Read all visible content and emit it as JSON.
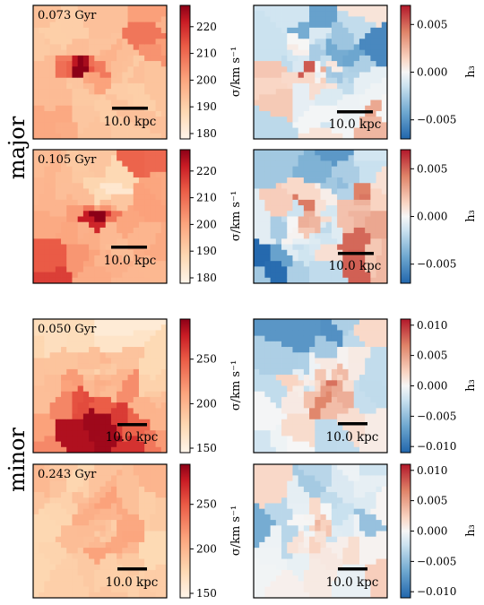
{
  "groups": [
    {
      "label": "major"
    },
    {
      "label": "minor"
    }
  ],
  "panels": [
    {
      "time": "0.073 Gyr",
      "scale": "10.0 kpc",
      "sigma_cbar": {
        "label": "σ/km s⁻¹",
        "ticks": [
          "180",
          "190",
          "200",
          "210",
          "220"
        ],
        "range": [
          178,
          228
        ]
      },
      "h3_cbar": {
        "label": "h₃",
        "ticks": [
          "0.005",
          "0.000",
          "−0.005"
        ],
        "range": [
          -0.007,
          0.007
        ]
      },
      "sigma_map": {
        "base": 0.28,
        "center": [
          0.36,
          0.47
        ],
        "core": 0.9,
        "bar_amp": 0.5,
        "bar_angle": 0.0,
        "bar_len": 0.28,
        "bar_w": 0.05,
        "ring_r": 0.0,
        "ring_amp": 0.0,
        "gradient": [
          0.0,
          0.0
        ],
        "blobs": [
          [
            0.75,
            0.05,
            0.12,
            0.6
          ],
          [
            0.9,
            0.25,
            0.1,
            0.25
          ],
          [
            0.15,
            0.9,
            0.15,
            0.15
          ]
        ]
      },
      "h3_map": {
        "noise": 0.32,
        "center": [
          0.5,
          0.52
        ],
        "blobs": [
          [
            0.0,
            0.55,
            0.12,
            0.85
          ],
          [
            0.05,
            0.3,
            0.12,
            -0.4
          ],
          [
            0.55,
            0.2,
            0.18,
            -0.45
          ],
          [
            0.85,
            0.3,
            0.12,
            -0.5
          ],
          [
            0.45,
            0.45,
            0.04,
            0.9
          ],
          [
            0.35,
            0.55,
            0.08,
            0.35
          ],
          [
            0.9,
            0.9,
            0.15,
            0.25
          ]
        ]
      }
    },
    {
      "time": "0.105 Gyr",
      "scale": "10.0 kpc",
      "sigma_cbar": {
        "label": "σ/km s⁻¹",
        "ticks": [
          "180",
          "190",
          "200",
          "210",
          "220"
        ],
        "range": [
          178,
          228
        ]
      },
      "h3_cbar": {
        "label": "h₃",
        "ticks": [
          "0.005",
          "0.000",
          "−0.005"
        ],
        "range": [
          -0.007,
          0.007
        ]
      },
      "sigma_map": {
        "base": 0.35,
        "center": [
          0.48,
          0.5
        ],
        "core": 0.95,
        "bar_amp": 0.45,
        "bar_angle": 0.05,
        "bar_len": 0.25,
        "bar_w": 0.04,
        "ring_r": 0.0,
        "ring_amp": 0.0,
        "gradient": [
          0.0,
          0.0
        ],
        "blobs": [
          [
            0.05,
            0.92,
            0.2,
            0.45
          ],
          [
            0.85,
            0.1,
            0.15,
            0.35
          ],
          [
            0.95,
            0.6,
            0.1,
            0.2
          ],
          [
            0.55,
            0.25,
            0.1,
            -0.35
          ]
        ]
      },
      "h3_map": {
        "noise": 0.3,
        "center": [
          0.52,
          0.55
        ],
        "blobs": [
          [
            0.62,
            0.05,
            0.15,
            -0.9
          ],
          [
            0.1,
            0.85,
            0.15,
            -0.85
          ],
          [
            0.4,
            0.45,
            0.06,
            0.95
          ],
          [
            0.75,
            0.72,
            0.07,
            0.95
          ],
          [
            0.85,
            0.4,
            0.1,
            0.6
          ],
          [
            0.2,
            0.2,
            0.15,
            -0.3
          ],
          [
            0.92,
            0.92,
            0.1,
            0.4
          ]
        ]
      }
    },
    {
      "time": "0.050 Gyr",
      "scale": "10.0 kpc",
      "sigma_cbar": {
        "label": "σ/km s⁻¹",
        "ticks": [
          "250",
          "200",
          "150"
        ],
        "range": [
          145,
          295
        ]
      },
      "h3_cbar": {
        "label": "h₃",
        "ticks": [
          "0.010",
          "0.005",
          "0.000",
          "−0.005",
          "−0.010"
        ],
        "range": [
          -0.011,
          0.011
        ]
      },
      "sigma_map": {
        "base": 0.12,
        "center": [
          0.5,
          0.48
        ],
        "core": 0.15,
        "bar_amp": 0.0,
        "bar_angle": 0.0,
        "bar_len": 0.0,
        "bar_w": 0.05,
        "ring_r": 0.2,
        "ring_amp": 0.25,
        "gradient": [
          0.0,
          0.32
        ],
        "blobs": [
          [
            0.55,
            0.98,
            0.2,
            0.7
          ],
          [
            0.35,
            0.9,
            0.15,
            0.3
          ],
          [
            0.75,
            0.2,
            0.2,
            -0.15
          ]
        ]
      },
      "h3_map": {
        "noise": 0.3,
        "center": [
          0.5,
          0.5
        ],
        "blobs": [
          [
            0.38,
            0.05,
            0.12,
            -0.95
          ],
          [
            0.6,
            0.08,
            0.1,
            -0.6
          ],
          [
            0.95,
            0.55,
            0.1,
            -0.8
          ],
          [
            0.1,
            0.3,
            0.15,
            -0.35
          ],
          [
            0.55,
            0.6,
            0.08,
            0.6
          ],
          [
            0.65,
            0.5,
            0.06,
            0.45
          ],
          [
            0.15,
            0.9,
            0.15,
            0.1
          ]
        ]
      }
    },
    {
      "time": "0.243 Gyr",
      "scale": "10.0 kpc",
      "sigma_cbar": {
        "label": "σ/km s⁻¹",
        "ticks": [
          "250",
          "200",
          "150"
        ],
        "range": [
          145,
          295
        ]
      },
      "h3_cbar": {
        "label": "h₃",
        "ticks": [
          "0.010",
          "0.005",
          "0.000",
          "−0.005",
          "−0.010"
        ],
        "range": [
          -0.011,
          0.011
        ]
      },
      "sigma_map": {
        "base": 0.2,
        "center": [
          0.52,
          0.48
        ],
        "core": 0.15,
        "bar_amp": 0.0,
        "bar_angle": 0.0,
        "bar_len": 0.0,
        "bar_w": 0.05,
        "ring_r": 0.18,
        "ring_amp": 0.22,
        "gradient": [
          0.0,
          0.05
        ],
        "blobs": [
          [
            0.95,
            0.2,
            0.12,
            0.2
          ],
          [
            0.08,
            0.15,
            0.12,
            0.15
          ]
        ]
      },
      "h3_map": {
        "noise": 0.25,
        "center": [
          0.5,
          0.45
        ],
        "blobs": [
          [
            0.6,
            0.05,
            0.15,
            -0.3
          ],
          [
            0.05,
            0.45,
            0.15,
            -0.35
          ],
          [
            0.95,
            0.4,
            0.15,
            -0.3
          ],
          [
            0.7,
            0.75,
            0.06,
            0.85
          ],
          [
            0.45,
            0.92,
            0.15,
            0.45
          ],
          [
            0.5,
            0.4,
            0.08,
            0.25
          ]
        ]
      }
    }
  ]
}
